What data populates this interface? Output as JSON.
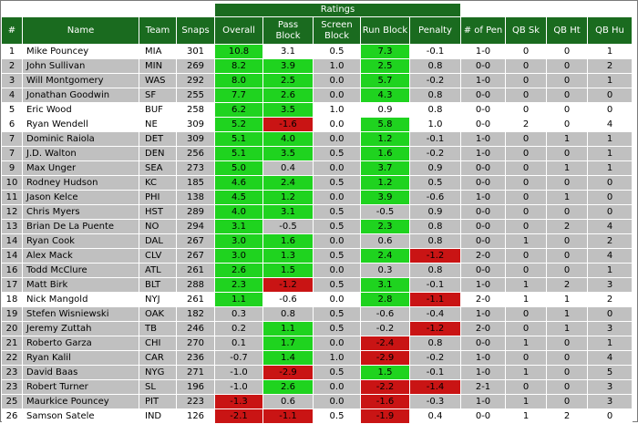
{
  "ratings_label": "Ratings",
  "columns": [
    "#",
    "Name",
    "Team",
    "Snaps",
    "Overall",
    "Pass Block",
    "Screen Block",
    "Run Block",
    "Penalty",
    "# of Pen",
    "QB Sk",
    "QB Ht",
    "QB Hu"
  ],
  "colors": {
    "header_green": "#1a6b1f",
    "row_gray": "#c0c0c0",
    "good_green": "#1fd31f",
    "bad_red": "#c91414"
  },
  "rows": [
    {
      "rank": "1",
      "name": "Mike Pouncey",
      "team": "MIA",
      "snaps": "301",
      "overall": "10.8",
      "pass": "3.1",
      "screen": "0.5",
      "run": "7.3",
      "penalty": "-0.1",
      "pen": "1-0",
      "sk": "0",
      "ht": "0",
      "hu": "1",
      "bg": "white",
      "hl": {
        "overall": "green",
        "run": "green"
      }
    },
    {
      "rank": "2",
      "name": "John Sullivan",
      "team": "MIN",
      "snaps": "269",
      "overall": "8.2",
      "pass": "3.9",
      "screen": "1.0",
      "run": "2.5",
      "penalty": "0.8",
      "pen": "0-0",
      "sk": "0",
      "ht": "0",
      "hu": "2",
      "bg": "gray",
      "hl": {
        "overall": "green",
        "pass": "green",
        "run": "green"
      }
    },
    {
      "rank": "3",
      "name": "Will Montgomery",
      "team": "WAS",
      "snaps": "292",
      "overall": "8.0",
      "pass": "2.5",
      "screen": "0.0",
      "run": "5.7",
      "penalty": "-0.2",
      "pen": "1-0",
      "sk": "0",
      "ht": "0",
      "hu": "1",
      "bg": "gray",
      "hl": {
        "overall": "green",
        "pass": "green",
        "run": "green"
      }
    },
    {
      "rank": "4",
      "name": "Jonathan Goodwin",
      "team": "SF",
      "snaps": "255",
      "overall": "7.7",
      "pass": "2.6",
      "screen": "0.0",
      "run": "4.3",
      "penalty": "0.8",
      "pen": "0-0",
      "sk": "0",
      "ht": "0",
      "hu": "0",
      "bg": "gray",
      "hl": {
        "overall": "green",
        "pass": "green",
        "run": "green"
      }
    },
    {
      "rank": "5",
      "name": "Eric Wood",
      "team": "BUF",
      "snaps": "258",
      "overall": "6.2",
      "pass": "3.5",
      "screen": "1.0",
      "run": "0.9",
      "penalty": "0.8",
      "pen": "0-0",
      "sk": "0",
      "ht": "0",
      "hu": "0",
      "bg": "white",
      "hl": {
        "overall": "green",
        "pass": "green"
      }
    },
    {
      "rank": "6",
      "name": "Ryan Wendell",
      "team": "NE",
      "snaps": "309",
      "overall": "5.2",
      "pass": "-1.6",
      "screen": "0.0",
      "run": "5.8",
      "penalty": "1.0",
      "pen": "0-0",
      "sk": "2",
      "ht": "0",
      "hu": "4",
      "bg": "white",
      "hl": {
        "overall": "green",
        "pass": "red",
        "run": "green"
      }
    },
    {
      "rank": "7",
      "name": "Dominic Raiola",
      "team": "DET",
      "snaps": "309",
      "overall": "5.1",
      "pass": "4.0",
      "screen": "0.0",
      "run": "1.2",
      "penalty": "-0.1",
      "pen": "1-0",
      "sk": "0",
      "ht": "1",
      "hu": "1",
      "bg": "gray",
      "hl": {
        "overall": "green",
        "pass": "green",
        "run": "green"
      }
    },
    {
      "rank": "7",
      "name": "J.D. Walton",
      "team": "DEN",
      "snaps": "256",
      "overall": "5.1",
      "pass": "3.5",
      "screen": "0.5",
      "run": "1.6",
      "penalty": "-0.2",
      "pen": "1-0",
      "sk": "0",
      "ht": "0",
      "hu": "1",
      "bg": "gray",
      "hl": {
        "overall": "green",
        "pass": "green",
        "run": "green"
      }
    },
    {
      "rank": "9",
      "name": "Max Unger",
      "team": "SEA",
      "snaps": "273",
      "overall": "5.0",
      "pass": "0.4",
      "screen": "0.0",
      "run": "3.7",
      "penalty": "0.9",
      "pen": "0-0",
      "sk": "0",
      "ht": "1",
      "hu": "1",
      "bg": "gray",
      "hl": {
        "overall": "green",
        "run": "green"
      }
    },
    {
      "rank": "10",
      "name": "Rodney Hudson",
      "team": "KC",
      "snaps": "185",
      "overall": "4.6",
      "pass": "2.4",
      "screen": "0.5",
      "run": "1.2",
      "penalty": "0.5",
      "pen": "0-0",
      "sk": "0",
      "ht": "0",
      "hu": "0",
      "bg": "gray",
      "hl": {
        "overall": "green",
        "pass": "green",
        "run": "green"
      }
    },
    {
      "rank": "11",
      "name": "Jason Kelce",
      "team": "PHI",
      "snaps": "138",
      "overall": "4.5",
      "pass": "1.2",
      "screen": "0.0",
      "run": "3.9",
      "penalty": "-0.6",
      "pen": "1-0",
      "sk": "0",
      "ht": "1",
      "hu": "0",
      "bg": "gray",
      "hl": {
        "overall": "green",
        "pass": "green",
        "run": "green"
      }
    },
    {
      "rank": "12",
      "name": "Chris Myers",
      "team": "HST",
      "snaps": "289",
      "overall": "4.0",
      "pass": "3.1",
      "screen": "0.5",
      "run": "-0.5",
      "penalty": "0.9",
      "pen": "0-0",
      "sk": "0",
      "ht": "0",
      "hu": "0",
      "bg": "gray",
      "hl": {
        "overall": "green",
        "pass": "green"
      }
    },
    {
      "rank": "13",
      "name": "Brian De La Puente",
      "team": "NO",
      "snaps": "294",
      "overall": "3.1",
      "pass": "-0.5",
      "screen": "0.5",
      "run": "2.3",
      "penalty": "0.8",
      "pen": "0-0",
      "sk": "0",
      "ht": "2",
      "hu": "4",
      "bg": "gray",
      "hl": {
        "overall": "green",
        "run": "green"
      }
    },
    {
      "rank": "14",
      "name": "Ryan Cook",
      "team": "DAL",
      "snaps": "267",
      "overall": "3.0",
      "pass": "1.6",
      "screen": "0.0",
      "run": "0.6",
      "penalty": "0.8",
      "pen": "0-0",
      "sk": "1",
      "ht": "0",
      "hu": "2",
      "bg": "gray",
      "hl": {
        "overall": "green",
        "pass": "green"
      }
    },
    {
      "rank": "14",
      "name": "Alex Mack",
      "team": "CLV",
      "snaps": "267",
      "overall": "3.0",
      "pass": "1.3",
      "screen": "0.5",
      "run": "2.4",
      "penalty": "-1.2",
      "pen": "2-0",
      "sk": "0",
      "ht": "0",
      "hu": "4",
      "bg": "gray",
      "hl": {
        "overall": "green",
        "pass": "green",
        "run": "green",
        "penalty": "red"
      }
    },
    {
      "rank": "16",
      "name": "Todd McClure",
      "team": "ATL",
      "snaps": "261",
      "overall": "2.6",
      "pass": "1.5",
      "screen": "0.0",
      "run": "0.3",
      "penalty": "0.8",
      "pen": "0-0",
      "sk": "0",
      "ht": "0",
      "hu": "1",
      "bg": "gray",
      "hl": {
        "overall": "green",
        "pass": "green"
      }
    },
    {
      "rank": "17",
      "name": "Matt Birk",
      "team": "BLT",
      "snaps": "288",
      "overall": "2.3",
      "pass": "-1.2",
      "screen": "0.5",
      "run": "3.1",
      "penalty": "-0.1",
      "pen": "1-0",
      "sk": "1",
      "ht": "2",
      "hu": "3",
      "bg": "gray",
      "hl": {
        "overall": "green",
        "pass": "red",
        "run": "green"
      }
    },
    {
      "rank": "18",
      "name": "Nick Mangold",
      "team": "NYJ",
      "snaps": "261",
      "overall": "1.1",
      "pass": "-0.6",
      "screen": "0.0",
      "run": "2.8",
      "penalty": "-1.1",
      "pen": "2-0",
      "sk": "1",
      "ht": "1",
      "hu": "2",
      "bg": "white",
      "hl": {
        "overall": "green",
        "run": "green",
        "penalty": "red"
      }
    },
    {
      "rank": "19",
      "name": "Stefen Wisniewski",
      "team": "OAK",
      "snaps": "182",
      "overall": "0.3",
      "pass": "0.8",
      "screen": "0.5",
      "run": "-0.6",
      "penalty": "-0.4",
      "pen": "1-0",
      "sk": "0",
      "ht": "1",
      "hu": "0",
      "bg": "gray",
      "hl": {}
    },
    {
      "rank": "20",
      "name": "Jeremy Zuttah",
      "team": "TB",
      "snaps": "246",
      "overall": "0.2",
      "pass": "1.1",
      "screen": "0.5",
      "run": "-0.2",
      "penalty": "-1.2",
      "pen": "2-0",
      "sk": "0",
      "ht": "1",
      "hu": "3",
      "bg": "gray",
      "hl": {
        "pass": "green",
        "penalty": "red"
      }
    },
    {
      "rank": "21",
      "name": "Roberto Garza",
      "team": "CHI",
      "snaps": "270",
      "overall": "0.1",
      "pass": "1.7",
      "screen": "0.0",
      "run": "-2.4",
      "penalty": "0.8",
      "pen": "0-0",
      "sk": "1",
      "ht": "0",
      "hu": "1",
      "bg": "gray",
      "hl": {
        "pass": "green",
        "run": "red"
      }
    },
    {
      "rank": "22",
      "name": "Ryan Kalil",
      "team": "CAR",
      "snaps": "236",
      "overall": "-0.7",
      "pass": "1.4",
      "screen": "1.0",
      "run": "-2.9",
      "penalty": "-0.2",
      "pen": "1-0",
      "sk": "0",
      "ht": "0",
      "hu": "4",
      "bg": "gray",
      "hl": {
        "pass": "green",
        "run": "red"
      }
    },
    {
      "rank": "23",
      "name": "David Baas",
      "team": "NYG",
      "snaps": "271",
      "overall": "-1.0",
      "pass": "-2.9",
      "screen": "0.5",
      "run": "1.5",
      "penalty": "-0.1",
      "pen": "1-0",
      "sk": "1",
      "ht": "0",
      "hu": "5",
      "bg": "gray",
      "hl": {
        "pass": "red",
        "run": "green"
      }
    },
    {
      "rank": "23",
      "name": "Robert Turner",
      "team": "SL",
      "snaps": "196",
      "overall": "-1.0",
      "pass": "2.6",
      "screen": "0.0",
      "run": "-2.2",
      "penalty": "-1.4",
      "pen": "2-1",
      "sk": "0",
      "ht": "0",
      "hu": "3",
      "bg": "gray",
      "hl": {
        "pass": "green",
        "run": "red",
        "penalty": "red"
      }
    },
    {
      "rank": "25",
      "name": "Maurkice Pouncey",
      "team": "PIT",
      "snaps": "223",
      "overall": "-1.3",
      "pass": "0.6",
      "screen": "0.0",
      "run": "-1.6",
      "penalty": "-0.3",
      "pen": "1-0",
      "sk": "1",
      "ht": "0",
      "hu": "3",
      "bg": "gray",
      "hl": {
        "overall": "red",
        "run": "red"
      }
    },
    {
      "rank": "26",
      "name": "Samson Satele",
      "team": "IND",
      "snaps": "126",
      "overall": "-2.1",
      "pass": "-1.1",
      "screen": "0.5",
      "run": "-1.9",
      "penalty": "0.4",
      "pen": "0-0",
      "sk": "1",
      "ht": "2",
      "hu": "0",
      "bg": "white",
      "hl": {
        "overall": "red",
        "pass": "red",
        "run": "red"
      }
    }
  ]
}
